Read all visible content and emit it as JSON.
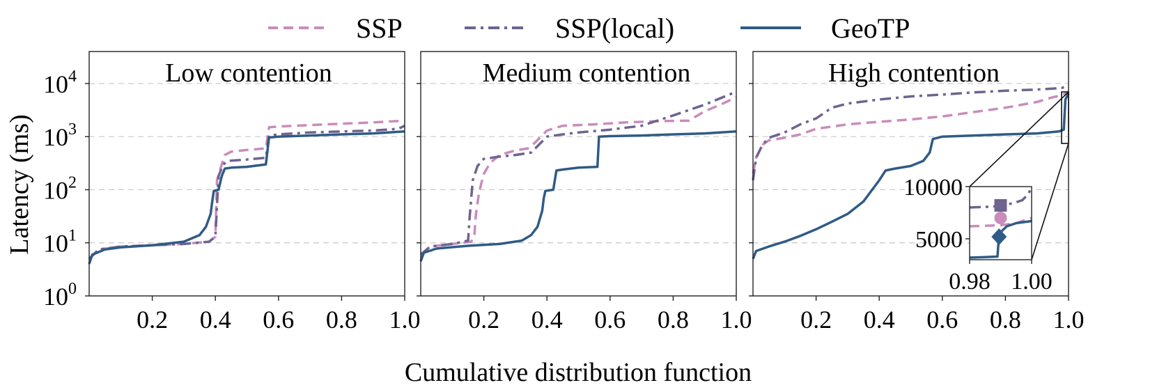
{
  "legend": [
    {
      "label": "SSP",
      "color": "#c98cbb",
      "style": "dashed"
    },
    {
      "label": "SSP(local)",
      "color": "#6f6390",
      "style": "dashdot"
    },
    {
      "label": "GeoTP",
      "color": "#2f5b86",
      "style": "solid"
    }
  ],
  "xlabel": "Cumulative distribution function",
  "ylabel": "Latency (ms)",
  "chart_data": {
    "type": "line",
    "scale_y": "log",
    "xlim": [
      0,
      1.0
    ],
    "ylim": [
      1,
      40000
    ],
    "x_ticks": [
      "0.2",
      "0.4",
      "0.6",
      "0.8",
      "1.0"
    ],
    "y_ticks": [
      {
        "base": "10",
        "exp": "0",
        "value": 1
      },
      {
        "base": "10",
        "exp": "1",
        "value": 10
      },
      {
        "base": "10",
        "exp": "2",
        "value": 100
      },
      {
        "base": "10",
        "exp": "3",
        "value": 1000
      },
      {
        "base": "10",
        "exp": "4",
        "value": 10000
      }
    ],
    "panels": [
      {
        "title": "Low contention",
        "series": [
          {
            "name": "SSP",
            "points": [
              [
                0,
                5
              ],
              [
                0.03,
                7.5
              ],
              [
                0.1,
                8.5
              ],
              [
                0.2,
                9
              ],
              [
                0.3,
                9.5
              ],
              [
                0.38,
                10.5
              ],
              [
                0.4,
                13
              ],
              [
                0.405,
                150
              ],
              [
                0.42,
                300
              ],
              [
                0.43,
                450
              ],
              [
                0.45,
                520
              ],
              [
                0.5,
                560
              ],
              [
                0.56,
                600
              ],
              [
                0.57,
                1500
              ],
              [
                0.6,
                1550
              ],
              [
                0.7,
                1650
              ],
              [
                0.8,
                1750
              ],
              [
                0.9,
                1850
              ],
              [
                1.0,
                2000
              ]
            ]
          },
          {
            "name": "SSP(local)",
            "points": [
              [
                0,
                5
              ],
              [
                0.03,
                7.5
              ],
              [
                0.1,
                8.5
              ],
              [
                0.2,
                9
              ],
              [
                0.3,
                9.5
              ],
              [
                0.38,
                10.5
              ],
              [
                0.4,
                13
              ],
              [
                0.41,
                180
              ],
              [
                0.425,
                300
              ],
              [
                0.44,
                350
              ],
              [
                0.5,
                370
              ],
              [
                0.56,
                400
              ],
              [
                0.57,
                1050
              ],
              [
                0.6,
                1100
              ],
              [
                0.7,
                1200
              ],
              [
                0.8,
                1250
              ],
              [
                0.9,
                1300
              ],
              [
                0.98,
                1400
              ],
              [
                1.0,
                1600
              ]
            ]
          },
          {
            "name": "GeoTP",
            "points": [
              [
                0,
                4
              ],
              [
                0.01,
                6
              ],
              [
                0.05,
                7.5
              ],
              [
                0.1,
                8.2
              ],
              [
                0.2,
                9
              ],
              [
                0.3,
                10.5
              ],
              [
                0.35,
                14
              ],
              [
                0.37,
                20
              ],
              [
                0.385,
                35
              ],
              [
                0.39,
                60
              ],
              [
                0.395,
                95
              ],
              [
                0.41,
                100
              ],
              [
                0.42,
                180
              ],
              [
                0.43,
                250
              ],
              [
                0.45,
                260
              ],
              [
                0.5,
                270
              ],
              [
                0.56,
                300
              ],
              [
                0.57,
                960
              ],
              [
                0.6,
                1000
              ],
              [
                0.7,
                1050
              ],
              [
                0.8,
                1100
              ],
              [
                0.9,
                1150
              ],
              [
                1.0,
                1250
              ]
            ]
          }
        ]
      },
      {
        "title": "Medium contention",
        "series": [
          {
            "name": "SSP",
            "points": [
              [
                0,
                6
              ],
              [
                0.03,
                8.5
              ],
              [
                0.1,
                9.5
              ],
              [
                0.16,
                10.5
              ],
              [
                0.17,
                14
              ],
              [
                0.175,
                35
              ],
              [
                0.185,
                90
              ],
              [
                0.2,
                200
              ],
              [
                0.22,
                320
              ],
              [
                0.25,
                450
              ],
              [
                0.3,
                550
              ],
              [
                0.34,
                600
              ],
              [
                0.36,
                750
              ],
              [
                0.4,
                1300
              ],
              [
                0.45,
                1600
              ],
              [
                0.55,
                1700
              ],
              [
                0.65,
                1850
              ],
              [
                0.75,
                1950
              ],
              [
                0.85,
                2000
              ],
              [
                0.9,
                3000
              ],
              [
                0.95,
                4000
              ],
              [
                1.0,
                5500
              ]
            ]
          },
          {
            "name": "SSP(local)",
            "points": [
              [
                0,
                6
              ],
              [
                0.03,
                8.5
              ],
              [
                0.1,
                9.5
              ],
              [
                0.15,
                11
              ],
              [
                0.155,
                30
              ],
              [
                0.165,
                150
              ],
              [
                0.18,
                280
              ],
              [
                0.2,
                380
              ],
              [
                0.25,
                420
              ],
              [
                0.3,
                450
              ],
              [
                0.35,
                500
              ],
              [
                0.4,
                1000
              ],
              [
                0.45,
                1100
              ],
              [
                0.5,
                1200
              ],
              [
                0.6,
                1350
              ],
              [
                0.7,
                1600
              ],
              [
                0.8,
                2500
              ],
              [
                0.9,
                4000
              ],
              [
                1.0,
                7000
              ]
            ]
          },
          {
            "name": "GeoTP",
            "points": [
              [
                0,
                4.5
              ],
              [
                0.01,
                6.5
              ],
              [
                0.05,
                7.8
              ],
              [
                0.15,
                8.8
              ],
              [
                0.25,
                9.5
              ],
              [
                0.32,
                11
              ],
              [
                0.35,
                14
              ],
              [
                0.37,
                20
              ],
              [
                0.385,
                40
              ],
              [
                0.39,
                70
              ],
              [
                0.395,
                95
              ],
              [
                0.42,
                100
              ],
              [
                0.43,
                230
              ],
              [
                0.45,
                240
              ],
              [
                0.5,
                260
              ],
              [
                0.56,
                270
              ],
              [
                0.565,
                1000
              ],
              [
                0.6,
                1020
              ],
              [
                0.7,
                1050
              ],
              [
                0.8,
                1100
              ],
              [
                0.9,
                1150
              ],
              [
                1.0,
                1250
              ]
            ]
          }
        ]
      },
      {
        "title": "High contention",
        "series": [
          {
            "name": "SSP",
            "points": [
              [
                0,
                200
              ],
              [
                0.01,
                400
              ],
              [
                0.03,
                700
              ],
              [
                0.05,
                850
              ],
              [
                0.1,
                950
              ],
              [
                0.15,
                1100
              ],
              [
                0.2,
                1400
              ],
              [
                0.3,
                1700
              ],
              [
                0.4,
                1900
              ],
              [
                0.5,
                2100
              ],
              [
                0.6,
                2400
              ],
              [
                0.7,
                2900
              ],
              [
                0.8,
                3500
              ],
              [
                0.9,
                4500
              ],
              [
                0.95,
                5500
              ],
              [
                0.98,
                6000
              ],
              [
                1.0,
                7000
              ]
            ]
          },
          {
            "name": "SSP(local)",
            "points": [
              [
                0,
                150
              ],
              [
                0.01,
                400
              ],
              [
                0.03,
                700
              ],
              [
                0.05,
                950
              ],
              [
                0.1,
                1200
              ],
              [
                0.15,
                1700
              ],
              [
                0.2,
                2200
              ],
              [
                0.25,
                3500
              ],
              [
                0.3,
                4200
              ],
              [
                0.4,
                5000
              ],
              [
                0.5,
                5700
              ],
              [
                0.6,
                6200
              ],
              [
                0.7,
                6800
              ],
              [
                0.8,
                7300
              ],
              [
                0.9,
                7700
              ],
              [
                0.95,
                8000
              ],
              [
                0.98,
                8300
              ],
              [
                1.0,
                9000
              ]
            ]
          },
          {
            "name": "GeoTP",
            "points": [
              [
                0,
                5
              ],
              [
                0.01,
                7
              ],
              [
                0.05,
                8.5
              ],
              [
                0.1,
                10.5
              ],
              [
                0.15,
                13.5
              ],
              [
                0.2,
                18
              ],
              [
                0.25,
                25
              ],
              [
                0.3,
                35
              ],
              [
                0.35,
                60
              ],
              [
                0.4,
                150
              ],
              [
                0.42,
                230
              ],
              [
                0.45,
                250
              ],
              [
                0.5,
                280
              ],
              [
                0.54,
                350
              ],
              [
                0.56,
                500
              ],
              [
                0.57,
                900
              ],
              [
                0.6,
                1000
              ],
              [
                0.7,
                1050
              ],
              [
                0.8,
                1100
              ],
              [
                0.9,
                1150
              ],
              [
                0.97,
                1250
              ],
              [
                0.985,
                1350
              ],
              [
                0.99,
                5000
              ],
              [
                1.0,
                6500
              ]
            ]
          }
        ],
        "inset": {
          "xlim": [
            0.98,
            1.0
          ],
          "ylim": [
            3000,
            10000
          ],
          "x_ticks": [
            "0.98",
            "1.00"
          ],
          "y_ticks": [
            {
              "label": "10000",
              "value": 10000
            },
            {
              "label": "5000",
              "value": 5000
            }
          ],
          "series": [
            {
              "name": "SSP(local)",
              "points": [
                [
                  0.98,
                  8000
                ],
                [
                  0.984,
                  8050
                ],
                [
                  0.988,
                  8100
                ],
                [
                  0.99,
                  8200
                ],
                [
                  0.994,
                  8400
                ],
                [
                  0.997,
                  8700
                ],
                [
                  0.999,
                  9300
                ],
                [
                  1.0,
                  10000
                ]
              ],
              "marker": {
                "shape": "square",
                "x": 0.99,
                "y": 8200
              }
            },
            {
              "name": "SSP",
              "points": [
                [
                  0.98,
                  6200
                ],
                [
                  0.985,
                  6250
                ],
                [
                  0.99,
                  6300
                ],
                [
                  0.995,
                  6500
                ],
                [
                  0.998,
                  6800
                ],
                [
                  1.0,
                  7000
                ]
              ],
              "marker": {
                "shape": "circle",
                "x": 0.99,
                "y": 7000
              }
            },
            {
              "name": "GeoTP",
              "points": [
                [
                  0.98,
                  3200
                ],
                [
                  0.985,
                  3250
                ],
                [
                  0.989,
                  3300
                ],
                [
                  0.9895,
                  5500
                ],
                [
                  0.992,
                  6200
                ],
                [
                  0.995,
                  6500
                ],
                [
                  1.0,
                  6700
                ]
              ],
              "marker": {
                "shape": "diamond",
                "x": 0.9895,
                "y": 5200
              }
            }
          ]
        }
      }
    ]
  }
}
